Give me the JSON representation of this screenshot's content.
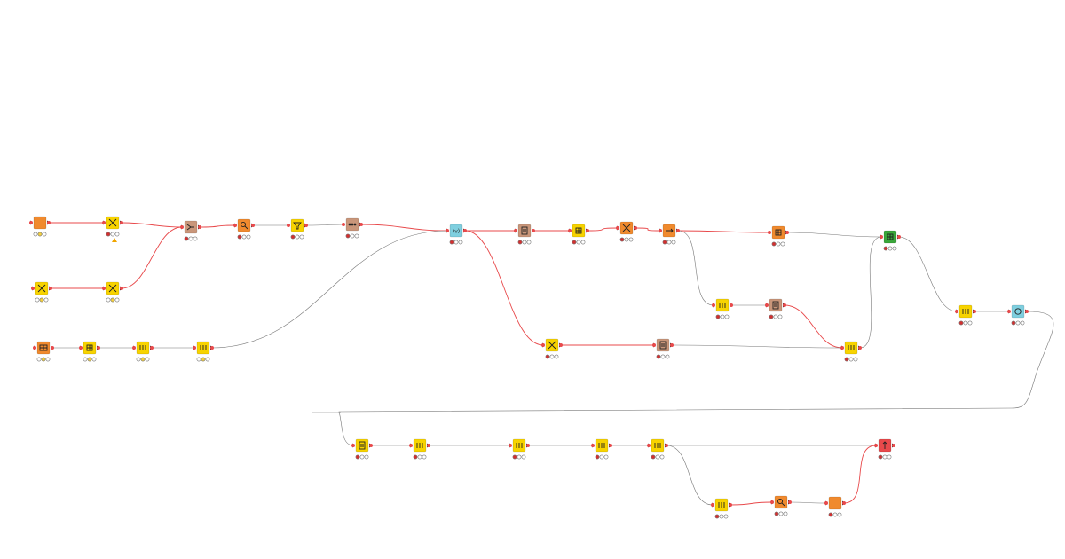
{
  "colors": {
    "yellow": "#f7d300",
    "orange": "#f08a2e",
    "tan": "#c9967a",
    "lightblue": "#7fcfdf",
    "green": "#3aa63a",
    "red": "#e8494b",
    "conn_active": "#e8494b",
    "conn_data": "#777777",
    "port_red": "#e8494b",
    "light_red": "#d32f2f",
    "light_yellow": "#f4d03f",
    "light_green": "#4caf50",
    "light_off": "#ffffff"
  },
  "workflow": {
    "nodes": [
      {
        "id": "n1",
        "name": "orange-source-node",
        "color": "orange",
        "status": [
          "off",
          "yellow",
          "off"
        ],
        "icon": "square"
      },
      {
        "id": "n2",
        "name": "yellow-transform-node",
        "color": "yellow",
        "status": [
          "red",
          "off",
          "off"
        ],
        "icon": "x-cross",
        "warning": true
      },
      {
        "id": "n3",
        "name": "yellow-read-node",
        "color": "yellow",
        "status": [
          "off",
          "yellow",
          "off"
        ],
        "icon": "x-cross"
      },
      {
        "id": "n4",
        "name": "yellow-transform-node",
        "color": "yellow",
        "status": [
          "off",
          "yellow",
          "off"
        ],
        "icon": "x-cross"
      },
      {
        "id": "n5",
        "name": "tan-joiner-node",
        "color": "tan",
        "status": [
          "red",
          "off",
          "off"
        ],
        "icon": "join"
      },
      {
        "id": "n6",
        "name": "orange-query-node",
        "color": "orange",
        "status": [
          "red",
          "off",
          "off"
        ],
        "icon": "magnifier"
      },
      {
        "id": "n7",
        "name": "yellow-filter-node",
        "color": "yellow",
        "status": [
          "red",
          "off",
          "off"
        ],
        "icon": "funnel"
      },
      {
        "id": "n8",
        "name": "tan-tool-node",
        "color": "tan",
        "status": [
          "red",
          "off",
          "off"
        ],
        "icon": "dots"
      },
      {
        "id": "n9",
        "name": "orange-table-source-node",
        "color": "orange",
        "status": [
          "off",
          "yellow",
          "off"
        ],
        "icon": "table"
      },
      {
        "id": "n10",
        "name": "yellow-manipulator-node",
        "color": "yellow",
        "status": [
          "off",
          "yellow",
          "off"
        ],
        "icon": "grid"
      },
      {
        "id": "n11",
        "name": "yellow-manipulator-node",
        "color": "yellow",
        "status": [
          "off",
          "yellow",
          "off"
        ],
        "icon": "bars"
      },
      {
        "id": "n12",
        "name": "yellow-manipulator-node",
        "color": "yellow",
        "status": [
          "off",
          "yellow",
          "off"
        ],
        "icon": "bars"
      },
      {
        "id": "n13",
        "name": "lightblue-variable-node",
        "color": "lightblue",
        "status": [
          "red",
          "off",
          "off"
        ],
        "icon": "variable"
      },
      {
        "id": "n14",
        "name": "tan-tool-node",
        "color": "tan",
        "status": [
          "red",
          "off",
          "off"
        ],
        "icon": "doc"
      },
      {
        "id": "n15",
        "name": "yellow-manipulator-node",
        "color": "yellow",
        "status": [
          "red",
          "off",
          "off"
        ],
        "icon": "grid"
      },
      {
        "id": "n16",
        "name": "orange-query-node",
        "color": "orange",
        "status": [
          "red",
          "off",
          "off"
        ],
        "icon": "x-cross"
      },
      {
        "id": "n17",
        "name": "orange-source-node",
        "color": "orange",
        "status": [
          "red",
          "off",
          "off"
        ],
        "icon": "arrows"
      },
      {
        "id": "n18",
        "name": "orange-db-node",
        "color": "orange",
        "status": [
          "red",
          "off",
          "off"
        ],
        "icon": "grid"
      },
      {
        "id": "n19",
        "name": "green-view-node",
        "color": "green",
        "status": [
          "red",
          "off",
          "off"
        ],
        "icon": "grid"
      },
      {
        "id": "n20",
        "name": "yellow-manipulator-node",
        "color": "yellow",
        "status": [
          "red",
          "off",
          "off"
        ],
        "icon": "bars"
      },
      {
        "id": "n21",
        "name": "tan-tool-node",
        "color": "tan",
        "status": [
          "red",
          "off",
          "off"
        ],
        "icon": "doc"
      },
      {
        "id": "n22",
        "name": "yellow-transform-node",
        "color": "yellow",
        "status": [
          "red",
          "off",
          "off"
        ],
        "icon": "x-cross"
      },
      {
        "id": "n23",
        "name": "tan-tool-node",
        "color": "tan",
        "status": [
          "red",
          "off",
          "off"
        ],
        "icon": "doc"
      },
      {
        "id": "n24",
        "name": "yellow-manipulator-node",
        "color": "yellow",
        "status": [
          "red",
          "off",
          "off"
        ],
        "icon": "bars"
      },
      {
        "id": "n25",
        "name": "yellow-manipulator-node",
        "color": "yellow",
        "status": [
          "red",
          "off",
          "off"
        ],
        "icon": "bars"
      },
      {
        "id": "n26",
        "name": "lightblue-variable-node",
        "color": "lightblue",
        "status": [
          "red",
          "off",
          "off"
        ],
        "icon": "circle"
      },
      {
        "id": "n27",
        "name": "yellow-manipulator-node",
        "color": "yellow",
        "status": [
          "red",
          "off",
          "off"
        ],
        "icon": "doc"
      },
      {
        "id": "n28",
        "name": "yellow-manipulator-node",
        "color": "yellow",
        "status": [
          "red",
          "off",
          "off"
        ],
        "icon": "bars"
      },
      {
        "id": "n29",
        "name": "yellow-manipulator-node",
        "color": "yellow",
        "status": [
          "red",
          "off",
          "off"
        ],
        "icon": "bars"
      },
      {
        "id": "n30",
        "name": "yellow-manipulator-node",
        "color": "yellow",
        "status": [
          "red",
          "off",
          "off"
        ],
        "icon": "bars"
      },
      {
        "id": "n31",
        "name": "yellow-manipulator-node",
        "color": "yellow",
        "status": [
          "red",
          "off",
          "off"
        ],
        "icon": "bars"
      },
      {
        "id": "n32",
        "name": "yellow-manipulator-node",
        "color": "yellow",
        "status": [
          "red",
          "off",
          "off"
        ],
        "icon": "bars"
      },
      {
        "id": "n33",
        "name": "orange-query-node",
        "color": "orange",
        "status": [
          "red",
          "off",
          "off"
        ],
        "icon": "magnifier"
      },
      {
        "id": "n34",
        "name": "orange-source-node",
        "color": "orange",
        "status": [
          "red",
          "off",
          "off"
        ],
        "icon": "square"
      },
      {
        "id": "n35",
        "name": "red-writer-node",
        "color": "red",
        "status": [
          "red",
          "off",
          "off"
        ],
        "icon": "arrow-up"
      }
    ],
    "connections": [
      {
        "from": "n1",
        "to": "n2",
        "kind": "active"
      },
      {
        "from": "n2",
        "to": "n5",
        "kind": "active"
      },
      {
        "from": "n3",
        "to": "n4",
        "kind": "active"
      },
      {
        "from": "n4",
        "to": "n5",
        "kind": "active"
      },
      {
        "from": "n5",
        "to": "n6",
        "kind": "active"
      },
      {
        "from": "n6",
        "to": "n7",
        "kind": "data"
      },
      {
        "from": "n7",
        "to": "n8",
        "kind": "data"
      },
      {
        "from": "n8",
        "to": "n13",
        "kind": "active"
      },
      {
        "from": "n9",
        "to": "n10",
        "kind": "data"
      },
      {
        "from": "n10",
        "to": "n11",
        "kind": "data"
      },
      {
        "from": "n11",
        "to": "n12",
        "kind": "data"
      },
      {
        "from": "n12",
        "to": "n13",
        "kind": "data"
      },
      {
        "from": "n13",
        "to": "n14",
        "kind": "active"
      },
      {
        "from": "n13",
        "to": "n22",
        "kind": "active"
      },
      {
        "from": "n14",
        "to": "n15",
        "kind": "active"
      },
      {
        "from": "n15",
        "to": "n16",
        "kind": "active"
      },
      {
        "from": "n16",
        "to": "n17",
        "kind": "active"
      },
      {
        "from": "n17",
        "to": "n18",
        "kind": "active"
      },
      {
        "from": "n17",
        "to": "n20",
        "kind": "data"
      },
      {
        "from": "n18",
        "to": "n19",
        "kind": "data"
      },
      {
        "from": "n20",
        "to": "n21",
        "kind": "data"
      },
      {
        "from": "n21",
        "to": "n24",
        "kind": "active"
      },
      {
        "from": "n22",
        "to": "n23",
        "kind": "active"
      },
      {
        "from": "n23",
        "to": "n24",
        "kind": "data"
      },
      {
        "from": "n24",
        "to": "n19",
        "kind": "data"
      },
      {
        "from": "n19",
        "to": "n25",
        "kind": "data"
      },
      {
        "from": "n25",
        "to": "n26",
        "kind": "data"
      },
      {
        "from": "n26",
        "to": "n27",
        "kind": "data",
        "route": "wrap"
      },
      {
        "from": "n27",
        "to": "n28",
        "kind": "data"
      },
      {
        "from": "n28",
        "to": "n29",
        "kind": "data"
      },
      {
        "from": "n29",
        "to": "n30",
        "kind": "data"
      },
      {
        "from": "n30",
        "to": "n31",
        "kind": "data"
      },
      {
        "from": "n31",
        "to": "n35",
        "kind": "data"
      },
      {
        "from": "n31",
        "to": "n32",
        "kind": "data"
      },
      {
        "from": "n32",
        "to": "n33",
        "kind": "active"
      },
      {
        "from": "n33",
        "to": "n34",
        "kind": "data"
      },
      {
        "from": "n34",
        "to": "n35",
        "kind": "active"
      }
    ]
  }
}
